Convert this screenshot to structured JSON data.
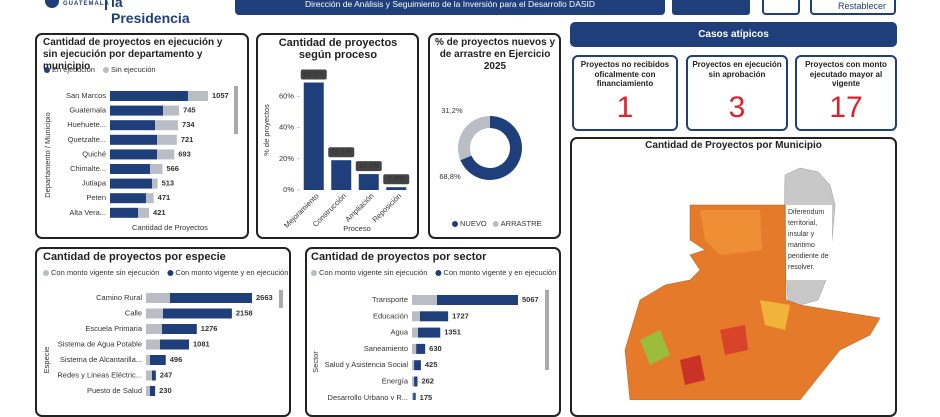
{
  "header": {
    "logo_text": "GUATEMALA",
    "logo_title": "la Presidencia",
    "banner": "Dirección de Análisis y Seguimiento de la Inversión para el Desarrollo DASID",
    "reset_button": "Restablecer"
  },
  "outliers": {
    "title": "Casos atípicos",
    "cards": [
      {
        "label": "Proyectos no recibidos oficalmente con financiamiento",
        "value": 1
      },
      {
        "label": "Proyectos en ejecución sin aprobación",
        "value": 3
      },
      {
        "label": "Proyectos con monto ejecutado mayor al vigente",
        "value": 17
      }
    ]
  },
  "map": {
    "title": "Cantidad de Proyectos por Municipio",
    "annotation": "Diferendum territorial, insular y maritimo pendiente de resolver."
  },
  "chart_data": [
    {
      "type": "hbar",
      "title": "Cantidad de proyectos en ejecución y sin ejecución por departamento y municipio",
      "xlabel": "Cantidad de Proyectos",
      "ylabel": "Departamento / Municipio",
      "categories": [
        "San Marcos",
        "Guatemala",
        "Huehuete...",
        "Quetzalte...",
        "Quiché",
        "Chimalte...",
        "Jutiapa",
        "Peten",
        "Alta Vera..."
      ],
      "series": [
        {
          "name": "En ejecución",
          "color": "#1f3f7a",
          "values": [
            841,
            572,
            486,
            507,
            507,
            432,
            453,
            388,
            302
          ]
        },
        {
          "name": "Sin ejecución",
          "color": "#b9bdc6",
          "values": [
            216,
            173,
            248,
            214,
            186,
            134,
            60,
            83,
            119
          ]
        }
      ],
      "totals": [
        1057,
        745,
        734,
        721,
        693,
        566,
        513,
        471,
        421
      ]
    },
    {
      "type": "bar",
      "title": "Cantidad de proyectos según proceso",
      "xlabel": "Proceso",
      "ylabel": "% de proyectos",
      "color": "#1f3f7a",
      "categories": [
        "Mejoramiento",
        "Construcción",
        "Ampliación",
        "Reposición"
      ],
      "values": [
        68.9,
        19.1,
        10.2,
        1.8
      ],
      "value_labels": [
        "68,9%",
        "19,1%",
        "10,2%",
        "1,8%"
      ],
      "ylim": [
        0,
        75
      ],
      "yticks": [
        {
          "value": 0,
          "label": "0%"
        },
        {
          "value": 20,
          "label": "20%"
        },
        {
          "value": 40,
          "label": "40%"
        },
        {
          "value": 60,
          "label": "60%"
        }
      ]
    },
    {
      "type": "donut",
      "title": "% de proyectos nuevos y de arrastre en Ejercicio 2025",
      "categories": [
        "NUEVO",
        "ARRASTRE"
      ],
      "values": [
        68.8,
        31.2
      ],
      "value_labels": [
        "68,8%",
        "31,2%"
      ],
      "colors": [
        "#1f3f7a",
        "#b9bdc6"
      ]
    },
    {
      "type": "hbar",
      "title": "Cantidad de proyectos por especie",
      "ylabel": "Especie",
      "categories": [
        "Camino Rural",
        "Calle",
        "Escuela Primaria",
        "Sistema de Agua Potable",
        "Sistema de Alcantarilla...",
        "Redes y Lineas Eléctric...",
        "Puesto de Salud"
      ],
      "series": [
        {
          "name": "Con monto vigente sin ejecución",
          "color": "#b9bdc6",
          "values": [
            603,
            427,
            402,
            352,
            100,
            151,
            100
          ]
        },
        {
          "name": "Con monto vigente y en ejecución",
          "color": "#1f3f7a",
          "values": [
            2060,
            1731,
            874,
            729,
            396,
            96,
            130
          ]
        }
      ],
      "totals": [
        2663,
        2158,
        1276,
        1081,
        496,
        247,
        230
      ]
    },
    {
      "type": "hbar",
      "title": "Cantidad de proyectos por sector",
      "ylabel": "Sector",
      "categories": [
        "Transporte",
        "Educación",
        "Agua",
        "Saneamiento",
        "Salud y Asistencia Social",
        "Energía",
        "Desarrollo Urbano y R..."
      ],
      "series": [
        {
          "name": "Con monto vigente sin ejecución",
          "color": "#b9bdc6",
          "values": [
            1195,
            382,
            287,
            200,
            100,
            100,
            60
          ]
        },
        {
          "name": "Con monto vigente y en ejecución",
          "color": "#1f3f7a",
          "values": [
            3872,
            1345,
            1064,
            430,
            325,
            162,
            115
          ]
        }
      ],
      "totals": [
        5067,
        1727,
        1351,
        630,
        425,
        262,
        175
      ]
    }
  ]
}
